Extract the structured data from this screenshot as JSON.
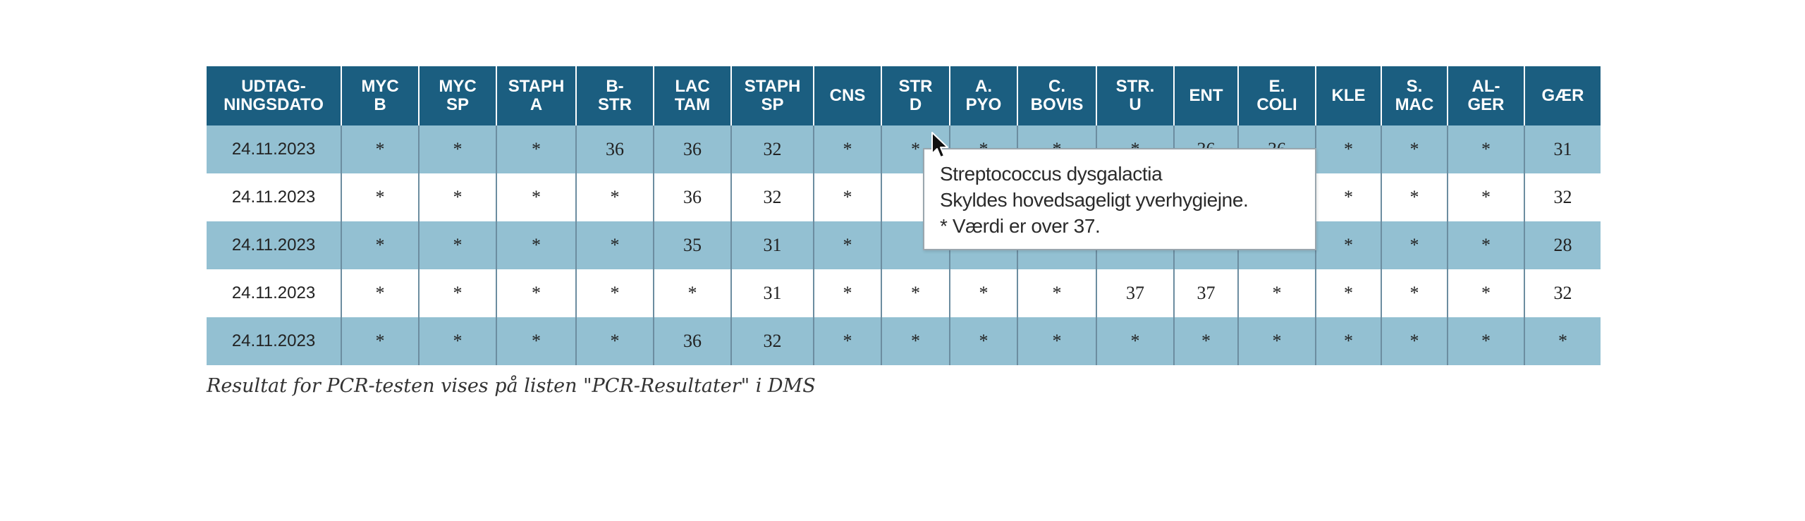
{
  "table": {
    "columns": [
      "UDTAG-\nNINGSDATO",
      "MYC\nB",
      "MYC\nSP",
      "STAPH\nA",
      "B-\nSTR",
      "LAC\nTAM",
      "STAPH\nSP",
      "CNS",
      "STR\nD",
      "A.\nPYO",
      "C.\nBOVIS",
      "STR.\nU",
      "ENT",
      "E.\nCOLI",
      "KLE",
      "S.\nMAC",
      "AL-\nGER",
      "GÆR"
    ],
    "rows": [
      [
        "24.11.2023",
        "*",
        "*",
        "*",
        "36",
        "36",
        "32",
        "*",
        "*",
        "*",
        "*",
        "*",
        "36",
        "36",
        "*",
        "*",
        "*",
        "31"
      ],
      [
        "24.11.2023",
        "*",
        "*",
        "*",
        "*",
        "36",
        "32",
        "*",
        "",
        "",
        "",
        "",
        "",
        "",
        "*",
        "*",
        "*",
        "32"
      ],
      [
        "24.11.2023",
        "*",
        "*",
        "*",
        "*",
        "35",
        "31",
        "*",
        "",
        "",
        "",
        "",
        "",
        "",
        "*",
        "*",
        "*",
        "28"
      ],
      [
        "24.11.2023",
        "*",
        "*",
        "*",
        "*",
        "*",
        "31",
        "*",
        "*",
        "*",
        "*",
        "37",
        "37",
        "*",
        "*",
        "*",
        "*",
        "32"
      ],
      [
        "24.11.2023",
        "*",
        "*",
        "*",
        "*",
        "36",
        "32",
        "*",
        "*",
        "*",
        "*",
        "*",
        "*",
        "*",
        "*",
        "*",
        "*",
        "*"
      ]
    ]
  },
  "footnote": "Resultat for PCR-testen vises på listen \"PCR-Resultater\" i DMS",
  "tooltip": {
    "line1": "Streptococcus dysgalactia",
    "line2": "Skyldes hovedsageligt yverhygiejne.",
    "line3": "* Værdi er over 37."
  },
  "colors": {
    "header_bg": "#1b5e80",
    "row_shaded": "#93c0d2",
    "row_plain": "#ffffff"
  },
  "icons": {
    "cursor": "mouse-pointer-icon"
  }
}
